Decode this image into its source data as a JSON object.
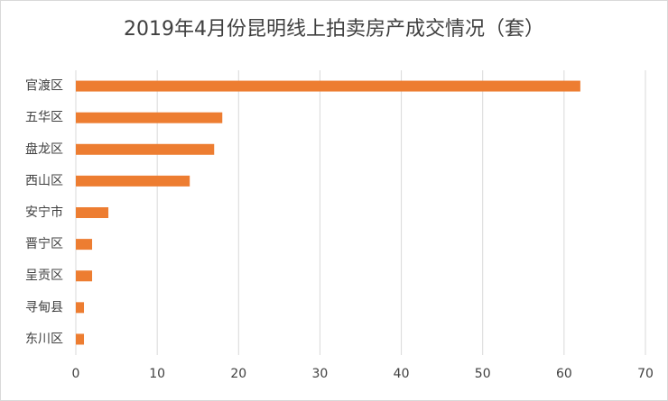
{
  "chart_data": {
    "type": "bar",
    "orientation": "horizontal",
    "title": "2019年4月份昆明线上拍卖房产成交情况（套）",
    "categories": [
      "官渡区",
      "五华区",
      "盘龙区",
      "西山区",
      "安宁市",
      "晋宁区",
      "呈贡区",
      "寻甸县",
      "东川区"
    ],
    "values": [
      62,
      18,
      17,
      14,
      4,
      2,
      2,
      1,
      1
    ],
    "color": "#ed7d31",
    "xlim": [
      0,
      70
    ],
    "xticks": [
      0,
      10,
      20,
      30,
      40,
      50,
      60,
      70
    ],
    "grid": true
  }
}
